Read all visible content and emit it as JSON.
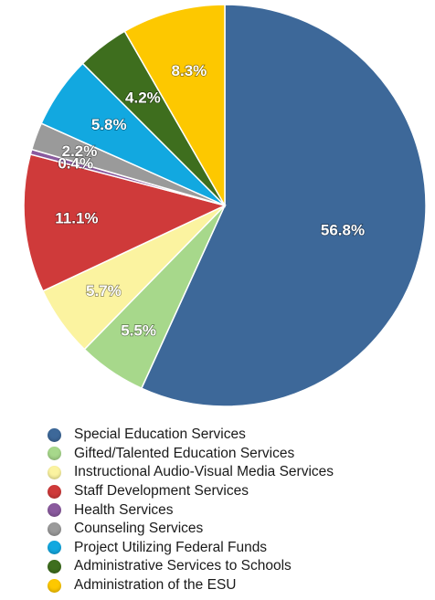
{
  "chart_data": {
    "type": "pie",
    "title": "",
    "legend_position": "bottom",
    "start": "top, clockwise",
    "slices": [
      {
        "name": "Special Education Services",
        "value": 56.8,
        "label": "56.8%",
        "color": "#3d6899"
      },
      {
        "name": "Gifted/Talented Education Services",
        "value": 5.5,
        "label": "5.5%",
        "color": "#a7d88b"
      },
      {
        "name": "Instructional Audio-Visual Media Services",
        "value": 5.7,
        "label": "5.7%",
        "color": "#fbf3a0"
      },
      {
        "name": "Staff Development Services",
        "value": 11.1,
        "label": "11.1%",
        "color": "#cf3a3a"
      },
      {
        "name": "Health Services",
        "value": 0.4,
        "label": "0.4%",
        "color": "#8a5a9e"
      },
      {
        "name": "Counseling Services",
        "value": 2.2,
        "label": "2.2%",
        "color": "#9a9a9a"
      },
      {
        "name": "Project Utilizing Federal Funds",
        "value": 5.8,
        "label": "5.8%",
        "color": "#12a8e0"
      },
      {
        "name": "Administrative Services to Schools",
        "value": 4.2,
        "label": "4.2%",
        "color": "#3e6e1e"
      },
      {
        "name": "Administration of the ESU",
        "value": 8.3,
        "label": "8.3%",
        "color": "#fdc800"
      }
    ]
  }
}
